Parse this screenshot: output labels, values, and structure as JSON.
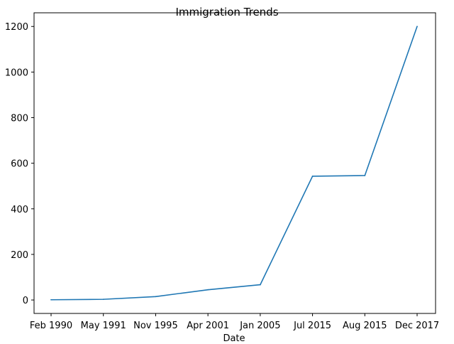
{
  "chart_data": {
    "type": "line",
    "title": "Immigration Trends",
    "xlabel": "Date",
    "ylabel": "",
    "categories": [
      "Feb 1990",
      "May 1991",
      "Nov 1995",
      "Apr 2001",
      "Jan 2005",
      "Jul 2015",
      "Aug 2015",
      "Dec 2017"
    ],
    "series": [
      {
        "values": [
          1,
          3,
          15,
          45,
          67,
          543,
          546,
          1200
        ]
      }
    ],
    "ylim": [
      -59,
      1260
    ],
    "yticks": [
      0,
      200,
      400,
      600,
      800,
      1000,
      1200
    ],
    "grid": false,
    "line_color": "#1f77b4"
  }
}
